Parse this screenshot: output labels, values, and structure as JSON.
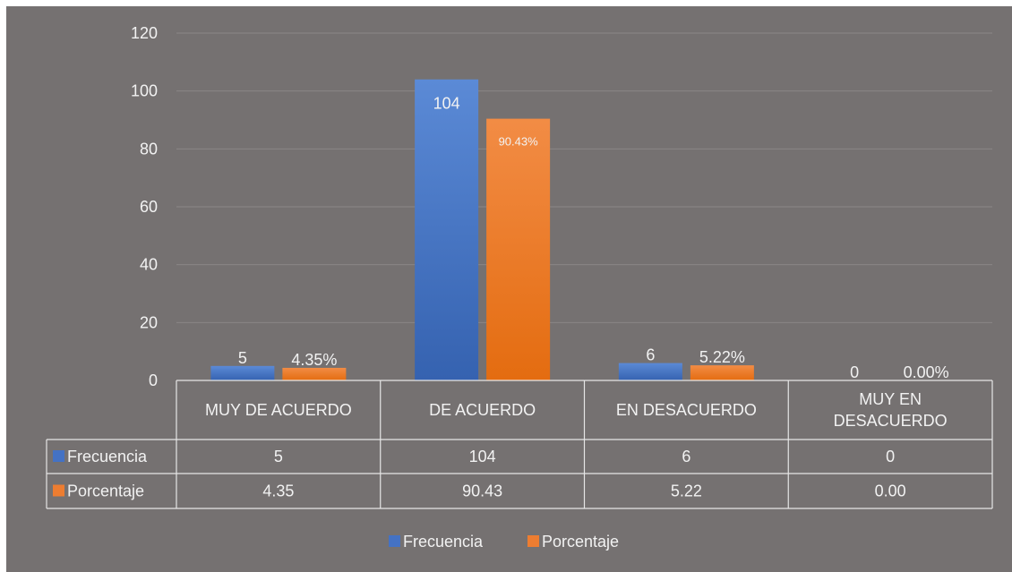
{
  "chart_data": {
    "type": "bar",
    "categories": [
      "MUY DE ACUERDO",
      "DE ACUERDO",
      "EN DESACUERDO",
      "MUY EN DESACUERDO"
    ],
    "series": [
      {
        "name": "Frecuencia",
        "values": [
          5,
          104,
          6,
          0
        ],
        "color": "#4472c4",
        "data_labels": [
          "5",
          "104",
          "6",
          "0"
        ],
        "table_values": [
          "5",
          "104",
          "6",
          "0"
        ]
      },
      {
        "name": "Porcentaje",
        "values": [
          4.35,
          90.43,
          5.22,
          0.0
        ],
        "color": "#ed7d31",
        "data_labels": [
          "4.35%",
          "90.43%",
          "5.22%",
          "0.00%"
        ],
        "table_values": [
          "4.35",
          "90.43",
          "5.22",
          "0.00"
        ]
      }
    ],
    "ylim": [
      0,
      120
    ],
    "yticks": [
      "0",
      "20",
      "40",
      "60",
      "80",
      "100",
      "120"
    ],
    "grid": true,
    "data_table": true,
    "legend_position": "bottom",
    "background": "#757171"
  }
}
